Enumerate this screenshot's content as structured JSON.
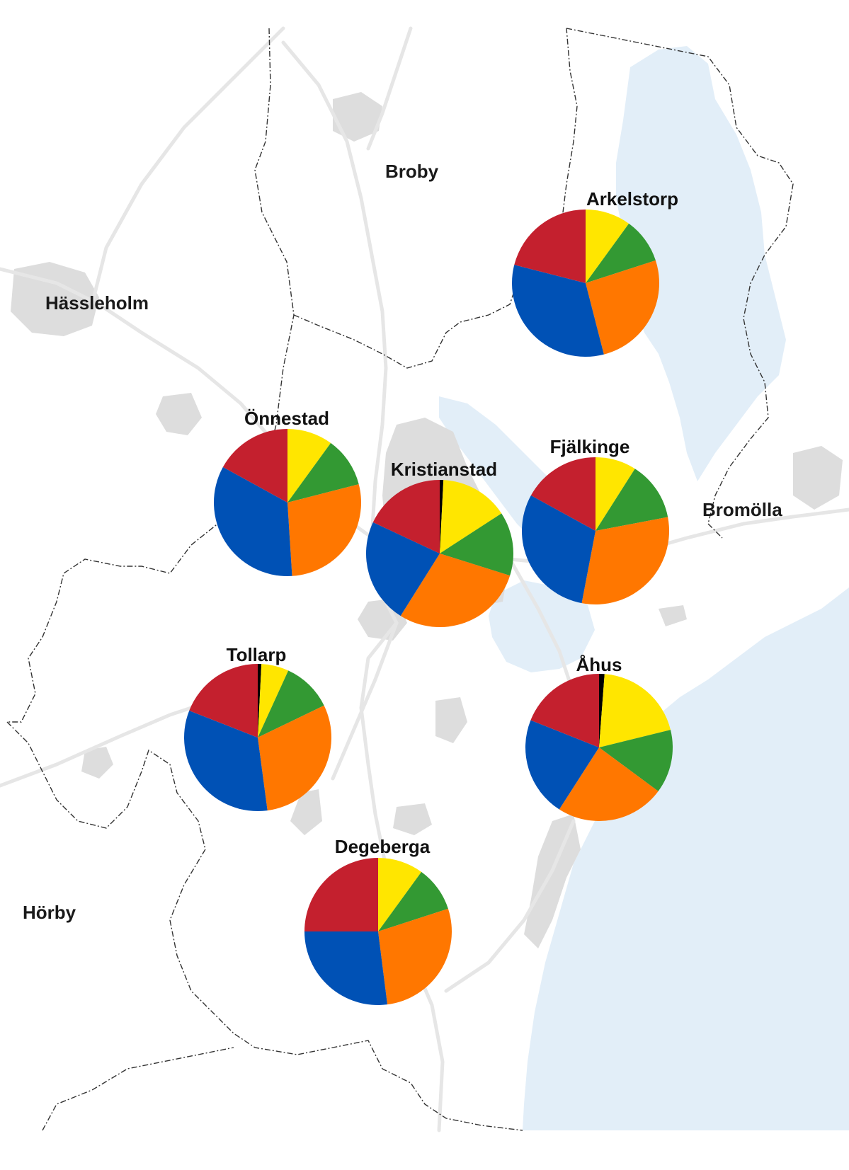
{
  "map": {
    "colors": {
      "water": "#e2eef8",
      "urban": "#dddddd",
      "road": "#e6e6e6",
      "border": "#333333",
      "slice_yellow": "#ffe600",
      "slice_green": "#339933",
      "slice_orange": "#ff7700",
      "slice_blue": "#0051b5",
      "slice_red": "#c4202e",
      "slice_black": "#000000"
    },
    "regions": [
      "Broby",
      "Hässleholm",
      "Bromölla",
      "Hörby"
    ],
    "pie_slice_order": [
      "black",
      "yellow",
      "green",
      "orange",
      "blue",
      "red"
    ],
    "towns": [
      {
        "name": "Arkelstorp",
        "fractions": {
          "black": 0.0,
          "yellow": 0.1,
          "green": 0.1,
          "orange": 0.26,
          "blue": 0.33,
          "red": 0.21
        }
      },
      {
        "name": "Önnestad",
        "fractions": {
          "black": 0.0,
          "yellow": 0.1,
          "green": 0.11,
          "orange": 0.28,
          "blue": 0.34,
          "red": 0.17
        }
      },
      {
        "name": "Kristianstad",
        "fractions": {
          "black": 0.008,
          "yellow": 0.15,
          "green": 0.14,
          "orange": 0.29,
          "blue": 0.23,
          "red": 0.18
        }
      },
      {
        "name": "Fjälkinge",
        "fractions": {
          "black": 0.0,
          "yellow": 0.09,
          "green": 0.13,
          "orange": 0.31,
          "blue": 0.3,
          "red": 0.17
        }
      },
      {
        "name": "Tollarp",
        "fractions": {
          "black": 0.008,
          "yellow": 0.06,
          "green": 0.11,
          "orange": 0.3,
          "blue": 0.33,
          "red": 0.19
        }
      },
      {
        "name": "Åhus",
        "fractions": {
          "black": 0.012,
          "yellow": 0.2,
          "green": 0.14,
          "orange": 0.24,
          "blue": 0.22,
          "red": 0.19
        }
      },
      {
        "name": "Degeberga",
        "fractions": {
          "black": 0.0,
          "yellow": 0.1,
          "green": 0.1,
          "orange": 0.28,
          "blue": 0.27,
          "red": 0.25
        }
      }
    ]
  }
}
